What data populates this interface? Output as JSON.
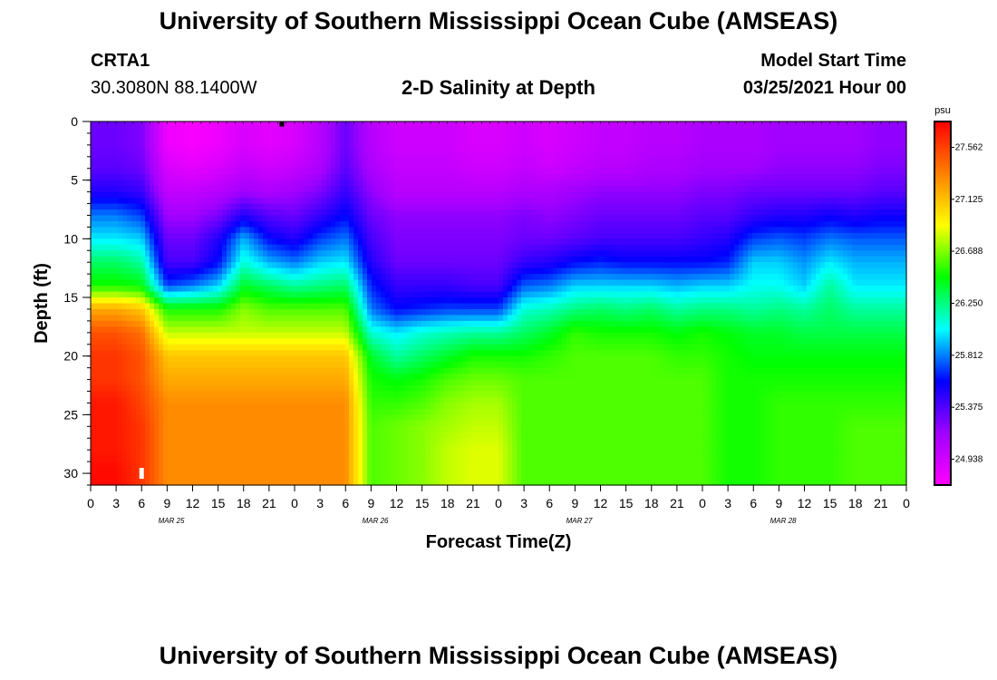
{
  "header": {
    "title": "University of Southern Mississippi Ocean Cube (AMSEAS)",
    "station": "CRTA1",
    "coords": "30.3080N  88.1400W",
    "product": "2-D Salinity at Depth",
    "model_start_label": "Model Start Time",
    "model_start_value": "03/25/2021 Hour 00"
  },
  "footer": {
    "title": "University of Southern Mississippi Ocean Cube (AMSEAS)"
  },
  "colors": {
    "scale": [
      "#ff00ff",
      "#a000ff",
      "#0000ff",
      "#00ffff",
      "#00ff00",
      "#ffff00",
      "#ff8000",
      "#ff0000"
    ]
  },
  "chart_data": {
    "type": "heatmap",
    "title": "2-D Salinity at Depth",
    "xlabel": "Forecast Time(Z)",
    "ylabel": "Depth (ft)",
    "x_ticks": [
      "0",
      "3",
      "6",
      "9",
      "12",
      "15",
      "18",
      "21",
      "0",
      "3",
      "6",
      "9",
      "12",
      "15",
      "18",
      "21",
      "0",
      "3",
      "6",
      "9",
      "12",
      "15",
      "18",
      "21",
      "0",
      "3",
      "6",
      "9",
      "12",
      "15",
      "18",
      "21",
      "0"
    ],
    "date_labels": [
      "MAR 25",
      "MAR 26",
      "MAR 27",
      "MAR 28"
    ],
    "y_ticks": [
      0,
      5,
      10,
      15,
      20,
      25,
      30
    ],
    "ylim": [
      0,
      31
    ],
    "xlim_hours": [
      0,
      96
    ],
    "colorbar": {
      "unit": "psu",
      "ticks": [
        27.562,
        27.125,
        26.688,
        26.25,
        25.812,
        25.375,
        24.938
      ],
      "range": [
        24.72,
        27.78
      ]
    },
    "forecast_hours": [
      0,
      3,
      6,
      9,
      12,
      15,
      18,
      21,
      24,
      27,
      30,
      33,
      36,
      39,
      42,
      45,
      48,
      51,
      54,
      57,
      60,
      63,
      66,
      69,
      72,
      75,
      78,
      81,
      84,
      87,
      90,
      93,
      96
    ],
    "depth_levels_ft": [
      0,
      2,
      4,
      6,
      8,
      10,
      12,
      14,
      16,
      18,
      20,
      22,
      24,
      26,
      28,
      30,
      31
    ],
    "salinity_columns": [
      [
        25.3,
        25.3,
        25.35,
        25.5,
        25.8,
        26.0,
        26.3,
        26.5,
        27.2,
        27.5,
        27.6,
        27.6,
        27.7,
        27.7,
        27.7,
        27.75,
        27.75
      ],
      [
        25.3,
        25.3,
        25.35,
        25.5,
        25.8,
        26.0,
        26.3,
        26.5,
        27.2,
        27.5,
        27.6,
        27.6,
        27.7,
        27.7,
        27.7,
        27.75,
        27.75
      ],
      [
        25.25,
        25.25,
        25.3,
        25.45,
        25.7,
        25.95,
        26.2,
        26.45,
        27.1,
        27.4,
        27.5,
        27.5,
        27.55,
        27.6,
        27.6,
        27.6,
        27.6
      ],
      [
        24.8,
        24.8,
        24.9,
        25.0,
        25.15,
        25.3,
        25.4,
        25.7,
        26.5,
        26.8,
        27.1,
        27.2,
        27.3,
        27.3,
        27.3,
        27.3,
        27.3
      ],
      [
        24.75,
        24.75,
        24.85,
        25.0,
        25.15,
        25.3,
        25.4,
        25.8,
        26.5,
        26.8,
        27.1,
        27.2,
        27.3,
        27.3,
        27.3,
        27.3,
        27.3
      ],
      [
        24.8,
        24.8,
        24.9,
        25.05,
        25.25,
        25.5,
        25.6,
        25.95,
        26.5,
        26.8,
        27.1,
        27.2,
        27.3,
        27.3,
        27.3,
        27.3,
        27.3
      ],
      [
        24.9,
        24.9,
        25.0,
        25.15,
        25.5,
        25.9,
        26.1,
        26.4,
        26.7,
        26.8,
        27.1,
        27.2,
        27.3,
        27.3,
        27.3,
        27.3,
        27.3
      ],
      [
        24.85,
        24.85,
        24.95,
        25.1,
        25.35,
        25.6,
        25.9,
        26.3,
        26.6,
        26.8,
        27.1,
        27.2,
        27.3,
        27.3,
        27.3,
        27.3,
        27.3
      ],
      [
        24.9,
        24.9,
        25.0,
        25.15,
        25.3,
        25.5,
        25.8,
        26.2,
        26.6,
        26.8,
        27.1,
        27.2,
        27.3,
        27.3,
        27.3,
        27.3,
        27.3
      ],
      [
        25.05,
        25.05,
        25.1,
        25.25,
        25.45,
        25.7,
        25.95,
        26.25,
        26.6,
        26.8,
        27.1,
        27.2,
        27.3,
        27.3,
        27.3,
        27.3,
        27.3
      ],
      [
        25.3,
        25.3,
        25.35,
        25.45,
        25.6,
        25.8,
        26.0,
        26.3,
        26.6,
        26.8,
        27.1,
        27.2,
        27.3,
        27.3,
        27.3,
        27.3,
        27.3
      ],
      [
        25.05,
        25.05,
        25.1,
        25.2,
        25.3,
        25.4,
        25.5,
        25.65,
        25.8,
        26.1,
        26.4,
        26.5,
        26.55,
        26.6,
        26.6,
        26.6,
        26.6
      ],
      [
        24.95,
        24.95,
        25.0,
        25.05,
        25.2,
        25.25,
        25.3,
        25.45,
        25.6,
        26.0,
        26.2,
        26.45,
        26.55,
        26.65,
        26.65,
        26.65,
        26.65
      ],
      [
        24.95,
        24.95,
        25.0,
        25.05,
        25.2,
        25.25,
        25.3,
        25.45,
        25.65,
        26.1,
        26.3,
        26.5,
        26.6,
        26.7,
        26.7,
        26.7,
        26.7
      ],
      [
        24.95,
        24.95,
        25.0,
        25.05,
        25.2,
        25.25,
        25.3,
        25.45,
        25.7,
        26.15,
        26.4,
        26.6,
        26.7,
        26.75,
        26.8,
        26.8,
        26.8
      ],
      [
        24.9,
        24.9,
        24.95,
        25.05,
        25.2,
        25.25,
        25.3,
        25.4,
        25.7,
        26.2,
        26.5,
        26.65,
        26.75,
        26.8,
        26.85,
        26.85,
        26.85
      ],
      [
        24.9,
        24.9,
        24.95,
        25.05,
        25.2,
        25.25,
        25.3,
        25.4,
        25.7,
        26.2,
        26.5,
        26.65,
        26.75,
        26.8,
        26.85,
        26.85,
        26.85
      ],
      [
        24.95,
        24.95,
        25.0,
        25.1,
        25.25,
        25.3,
        25.45,
        25.75,
        26.1,
        26.3,
        26.5,
        26.6,
        26.6,
        26.6,
        26.6,
        26.6,
        26.6
      ],
      [
        24.9,
        24.9,
        24.95,
        25.1,
        25.2,
        25.3,
        25.5,
        25.8,
        26.15,
        26.4,
        26.55,
        26.6,
        26.6,
        26.6,
        26.6,
        26.6,
        26.6
      ],
      [
        24.95,
        24.95,
        25.0,
        25.15,
        25.25,
        25.35,
        25.6,
        25.95,
        26.25,
        26.55,
        26.6,
        26.6,
        26.6,
        26.6,
        26.6,
        26.6,
        26.6
      ],
      [
        25.0,
        25.0,
        25.05,
        25.2,
        25.3,
        25.4,
        25.65,
        25.95,
        26.3,
        26.5,
        26.6,
        26.6,
        26.6,
        26.6,
        26.6,
        26.6,
        26.6
      ],
      [
        25.0,
        25.0,
        25.05,
        25.2,
        25.3,
        25.4,
        25.6,
        25.95,
        26.25,
        26.5,
        26.6,
        26.6,
        26.6,
        26.6,
        26.6,
        26.6,
        26.6
      ],
      [
        25.05,
        25.05,
        25.1,
        25.2,
        25.3,
        25.4,
        25.6,
        25.95,
        26.3,
        26.5,
        26.6,
        26.6,
        26.6,
        26.6,
        26.6,
        26.6,
        26.6
      ],
      [
        25.05,
        25.05,
        25.1,
        25.2,
        25.3,
        25.4,
        25.6,
        25.9,
        26.2,
        26.45,
        26.55,
        26.6,
        26.6,
        26.6,
        26.6,
        26.6,
        26.6
      ],
      [
        25.1,
        25.1,
        25.15,
        25.25,
        25.35,
        25.45,
        25.6,
        25.95,
        26.25,
        26.5,
        26.55,
        26.6,
        26.6,
        26.6,
        26.6,
        26.6,
        26.6
      ],
      [
        25.1,
        25.1,
        25.15,
        25.25,
        25.35,
        25.5,
        25.65,
        25.95,
        26.25,
        26.45,
        26.5,
        26.5,
        26.5,
        26.5,
        26.5,
        26.5,
        26.5
      ],
      [
        25.1,
        25.1,
        25.15,
        25.3,
        25.45,
        25.7,
        25.95,
        26.05,
        26.2,
        26.4,
        26.45,
        26.5,
        26.5,
        26.5,
        26.5,
        26.5,
        26.5
      ],
      [
        25.15,
        25.15,
        25.2,
        25.3,
        25.5,
        25.75,
        25.95,
        26.05,
        26.25,
        26.4,
        26.45,
        26.5,
        26.55,
        26.55,
        26.55,
        26.55,
        26.55
      ],
      [
        25.15,
        25.15,
        25.2,
        25.3,
        25.5,
        25.7,
        25.85,
        25.95,
        26.2,
        26.35,
        26.45,
        26.5,
        26.55,
        26.55,
        26.55,
        26.55,
        26.55
      ],
      [
        25.15,
        25.15,
        25.2,
        25.3,
        25.55,
        25.8,
        26.0,
        26.2,
        26.3,
        26.35,
        26.45,
        26.5,
        26.55,
        26.55,
        26.55,
        26.55,
        26.55
      ],
      [
        25.15,
        25.15,
        25.2,
        25.3,
        25.5,
        25.75,
        25.9,
        26.0,
        26.2,
        26.35,
        26.45,
        26.5,
        26.55,
        26.6,
        26.6,
        26.6,
        26.6
      ],
      [
        25.2,
        25.2,
        25.25,
        25.35,
        25.55,
        25.75,
        25.9,
        26.0,
        26.2,
        26.35,
        26.45,
        26.5,
        26.55,
        26.6,
        26.6,
        26.6,
        26.6
      ],
      [
        25.2,
        25.2,
        25.25,
        25.35,
        25.55,
        25.75,
        25.9,
        26.0,
        26.2,
        26.35,
        26.45,
        26.5,
        26.55,
        26.6,
        26.6,
        26.6,
        26.6
      ]
    ],
    "markers": [
      {
        "hour": 22.5,
        "depth": 0.2,
        "color": "#000000"
      },
      {
        "hour": 6.0,
        "depth": 30.0,
        "color": "#ffffff"
      }
    ],
    "grid": false
  }
}
